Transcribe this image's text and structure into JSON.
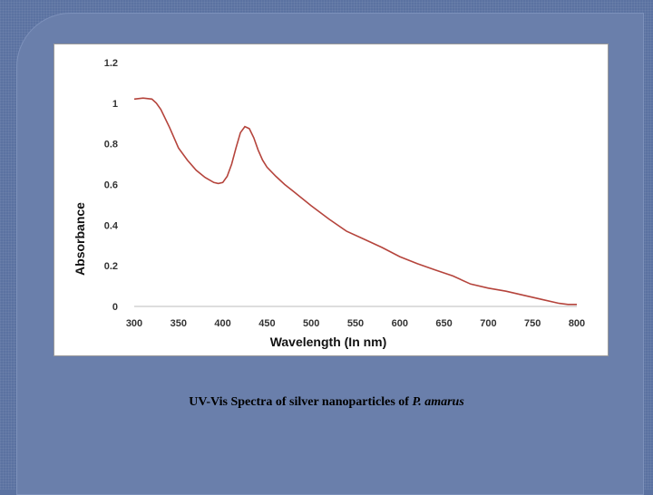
{
  "caption": {
    "text": "UV-Vis Spectra of silver nanoparticles of",
    "species": "P. amarus"
  },
  "chart_data": {
    "type": "line",
    "title": "",
    "xlabel": "Wavelength (In nm)",
    "ylabel": "Absorbance",
    "xlim": [
      300,
      800
    ],
    "ylim": [
      0,
      1.2
    ],
    "x_ticks": [
      300,
      350,
      400,
      450,
      500,
      550,
      600,
      650,
      700,
      750,
      800
    ],
    "y_ticks": [
      0,
      0.2,
      0.4,
      0.6,
      0.8,
      1,
      1.2
    ],
    "x_tick_labels": [
      "300",
      "350",
      "400",
      "450",
      "500",
      "550",
      "600",
      "650",
      "700",
      "750",
      "800"
    ],
    "y_tick_labels": [
      "0",
      "0.2",
      "0.4",
      "0.6",
      "0.8",
      "1",
      "1.2"
    ],
    "grid": false,
    "line_color": "#b5443c",
    "series": [
      {
        "x": [
          300,
          310,
          320,
          325,
          330,
          340,
          350,
          360,
          370,
          380,
          390,
          395,
          400,
          405,
          410,
          415,
          420,
          425,
          430,
          435,
          440,
          445,
          450,
          460,
          470,
          480,
          500,
          520,
          540,
          560,
          580,
          600,
          620,
          640,
          660,
          680,
          700,
          720,
          740,
          760,
          780,
          790,
          800
        ],
        "y": [
          1.02,
          1.025,
          1.02,
          1.0,
          0.97,
          0.88,
          0.78,
          0.72,
          0.67,
          0.635,
          0.61,
          0.605,
          0.61,
          0.64,
          0.7,
          0.78,
          0.855,
          0.885,
          0.875,
          0.83,
          0.77,
          0.72,
          0.685,
          0.64,
          0.6,
          0.565,
          0.495,
          0.43,
          0.37,
          0.33,
          0.29,
          0.245,
          0.21,
          0.18,
          0.15,
          0.11,
          0.09,
          0.075,
          0.055,
          0.035,
          0.015,
          0.01,
          0.01
        ]
      }
    ]
  }
}
